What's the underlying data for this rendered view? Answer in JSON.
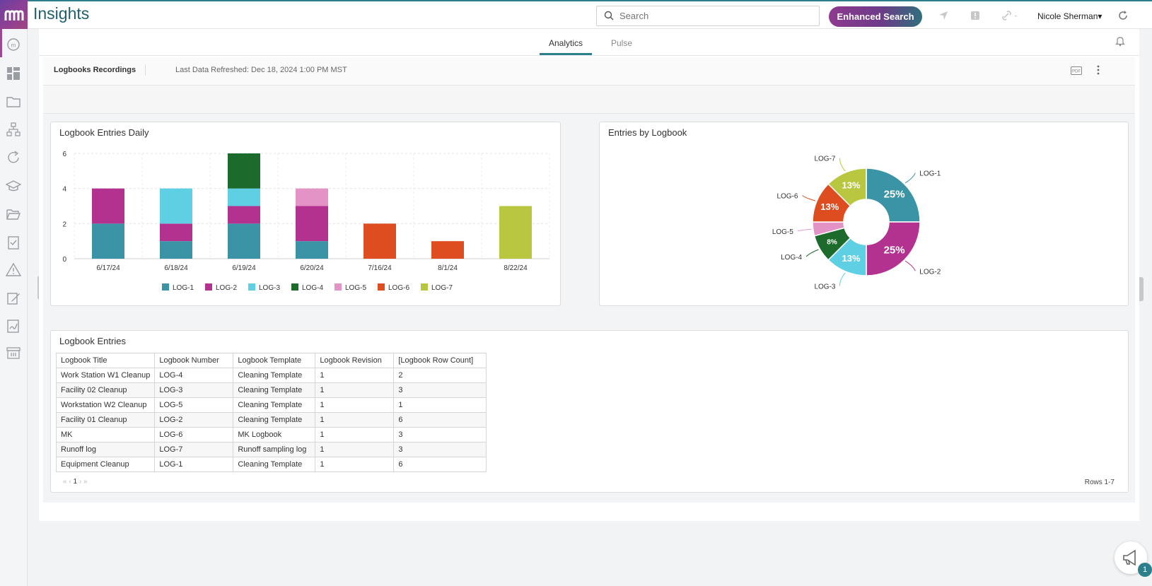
{
  "app": {
    "title": "Insights"
  },
  "search": {
    "placeholder": "Search"
  },
  "header": {
    "enhanced_search_label": "Enhanced Search",
    "user_name": "Nicole Sherman"
  },
  "tabs": [
    {
      "label": "Analytics",
      "active": true
    },
    {
      "label": "Pulse",
      "active": false
    }
  ],
  "dashboard": {
    "title": "Logbooks Recordings",
    "refresh_text": "Last Data Refreshed: Dec 18, 2024 1:00 PM MST"
  },
  "colors": {
    "LOG-1": "#3a94a6",
    "LOG-2": "#b3318f",
    "LOG-3": "#5fd0e3",
    "LOG-4": "#1c6b2c",
    "LOG-5": "#e493c6",
    "LOG-6": "#dd4d1f",
    "LOG-7": "#b9c740"
  },
  "bar_panel": {
    "title": "Logbook Entries Daily"
  },
  "pie_panel": {
    "title": "Entries by Logbook"
  },
  "chart_data": [
    {
      "type": "bar",
      "stacked": true,
      "title": "Logbook Entries Daily",
      "categories": [
        "6/17/24",
        "6/18/24",
        "6/19/24",
        "6/20/24",
        "7/16/24",
        "8/1/24",
        "8/22/24"
      ],
      "series": [
        {
          "name": "LOG-1",
          "values": [
            2,
            1,
            2,
            1,
            0,
            0,
            0
          ]
        },
        {
          "name": "LOG-2",
          "values": [
            2,
            1,
            1,
            2,
            0,
            0,
            0
          ]
        },
        {
          "name": "LOG-3",
          "values": [
            0,
            2,
            1,
            0,
            0,
            0,
            0
          ]
        },
        {
          "name": "LOG-4",
          "values": [
            0,
            0,
            2,
            0,
            0,
            0,
            0
          ]
        },
        {
          "name": "LOG-5",
          "values": [
            0,
            0,
            0,
            1,
            0,
            0,
            0
          ]
        },
        {
          "name": "LOG-6",
          "values": [
            0,
            0,
            0,
            0,
            2,
            1,
            0
          ]
        },
        {
          "name": "LOG-7",
          "values": [
            0,
            0,
            0,
            0,
            0,
            0,
            3
          ]
        }
      ],
      "yticks": [
        0,
        2,
        4,
        6
      ],
      "ylim": [
        0,
        6
      ],
      "legend": "bottom",
      "grid": true
    },
    {
      "type": "pie",
      "donut": true,
      "title": "Entries by Logbook",
      "slices": [
        {
          "name": "LOG-1",
          "value": 6,
          "label": "25%"
        },
        {
          "name": "LOG-2",
          "value": 6,
          "label": "25%"
        },
        {
          "name": "LOG-3",
          "value": 3,
          "label": "13%"
        },
        {
          "name": "LOG-4",
          "value": 2,
          "label": "8%"
        },
        {
          "name": "LOG-5",
          "value": 1,
          "label": ""
        },
        {
          "name": "LOG-6",
          "value": 3,
          "label": "13%"
        },
        {
          "name": "LOG-7",
          "value": 3,
          "label": "13%"
        }
      ]
    }
  ],
  "table_panel": {
    "title": "Logbook Entries",
    "columns": [
      "Logbook Title",
      "Logbook Number",
      "Logbook Template",
      "Logbook Revision",
      "[Logbook Row Count]"
    ],
    "rows": [
      [
        "Work Station W1 Cleanup",
        "LOG-4",
        "Cleaning Template",
        "1",
        "2"
      ],
      [
        "Facility 02 Cleanup",
        "LOG-3",
        "Cleaning Template",
        "1",
        "3"
      ],
      [
        "Workstation W2 Cleanup",
        "LOG-5",
        "Cleaning Template",
        "1",
        "1"
      ],
      [
        "Facility 01 Cleanup",
        "LOG-2",
        "Cleaning Template",
        "1",
        "6"
      ],
      [
        "MK",
        "LOG-6",
        "MK Logbook",
        "1",
        "3"
      ],
      [
        "Runoff log",
        "LOG-7",
        "Runoff sampling log",
        "1",
        "3"
      ],
      [
        "Equipment Cleanup",
        "LOG-1",
        "Cleaning Template",
        "1",
        "6"
      ]
    ],
    "pager": {
      "first": "«",
      "prev": "‹",
      "page": "1",
      "next": "›",
      "last": "»"
    },
    "rows_label": "Rows 1-7"
  },
  "fab": {
    "badge_count": "1"
  }
}
